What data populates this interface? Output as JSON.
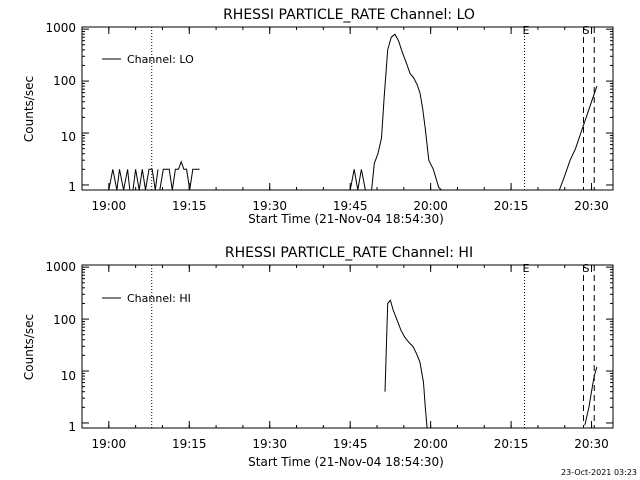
{
  "footer_timestamp": "23-Oct-2021 03:23",
  "chart_data": [
    {
      "type": "line",
      "title": "RHESSI PARTICLE_RATE Channel: LO",
      "xlabel": "Start Time (21-Nov-04 18:54:30)",
      "ylabel": "Counts/sec",
      "y_scale": "log",
      "ylim": [
        0.8,
        1100
      ],
      "xlim": [
        "18:55:00",
        "20:34:00"
      ],
      "x_ticks": [
        "19:00",
        "19:15",
        "19:30",
        "19:45",
        "20:00",
        "20:15",
        "20:30"
      ],
      "y_ticks": [
        "1",
        "10",
        "100",
        "1000"
      ],
      "legend": {
        "label": "Channel: LO",
        "placement": "top-left"
      },
      "markers": [
        {
          "time": "19:08:00",
          "style": "dotted",
          "label": ""
        },
        {
          "time": "20:17:30",
          "style": "dotted",
          "label": "E"
        },
        {
          "time": "20:28:30",
          "style": "dashed",
          "label": "S"
        },
        {
          "time": "20:30:30",
          "style": "dashed",
          "label": ""
        }
      ],
      "series": [
        {
          "name": "Channel: LO",
          "segments": [
            {
              "x": [
                "19:00:00",
                "19:00:45",
                "19:01:30",
                "19:02:00",
                "19:02:45",
                "19:03:30",
                "19:03:55"
              ],
              "y": [
                0.8,
                2,
                0.8,
                2,
                0.8,
                2,
                0.8
              ]
            },
            {
              "x": [
                "19:04:30",
                "19:05:00",
                "19:05:40",
                "19:06:15",
                "19:06:50",
                "19:07:30",
                "19:08:05",
                "19:08:40",
                "19:09:10"
              ],
              "y": [
                0.8,
                2,
                0.8,
                2,
                0.8,
                2,
                2,
                0.8,
                2
              ]
            },
            {
              "x": [
                "19:09:30",
                "19:10:10",
                "19:10:40",
                "19:11:15",
                "19:11:50",
                "19:12:25",
                "19:13:00",
                "19:13:30",
                "19:14:00",
                "19:14:30",
                "19:15:05",
                "19:15:40",
                "19:16:20",
                "19:16:55"
              ],
              "y": [
                0.8,
                2,
                2,
                2,
                0.8,
                2,
                2,
                2.8,
                2,
                2,
                0.8,
                2,
                2,
                2
              ]
            },
            {
              "x": [
                "19:45:00",
                "19:45:45",
                "19:46:25",
                "19:47:05",
                "19:47:50"
              ],
              "y": [
                0.8,
                2,
                0.8,
                2,
                0.8
              ]
            },
            {
              "x": [
                "19:49:00",
                "19:49:30",
                "19:50:10",
                "19:50:50",
                "19:51:20",
                "19:52:00",
                "19:52:40",
                "19:53:20",
                "19:54:00",
                "19:54:45",
                "19:55:30",
                "19:56:10",
                "19:56:50",
                "19:57:30",
                "19:58:00",
                "19:58:30",
                "19:59:00",
                "19:59:40",
                "20:00:30",
                "20:01:30",
                "20:02:00"
              ],
              "y": [
                0.8,
                2.6,
                4,
                8,
                50,
                400,
                700,
                800,
                600,
                350,
                220,
                140,
                115,
                85,
                60,
                30,
                12,
                3,
                2,
                0.9,
                0.8
              ]
            },
            {
              "x": [
                "20:24:00",
                "20:25:00",
                "20:26:00",
                "20:27:00",
                "20:28:00",
                "20:29:00",
                "20:30:00",
                "20:31:00"
              ],
              "y": [
                0.8,
                1.5,
                3,
                5,
                10,
                20,
                40,
                80
              ]
            }
          ]
        }
      ]
    },
    {
      "type": "line",
      "title": "RHESSI PARTICLE_RATE Channel: HI",
      "xlabel": "Start Time (21-Nov-04 18:54:30)",
      "ylabel": "Counts/sec",
      "y_scale": "log",
      "ylim": [
        0.8,
        1100
      ],
      "xlim": [
        "18:55:00",
        "20:34:00"
      ],
      "x_ticks": [
        "19:00",
        "19:15",
        "19:30",
        "19:45",
        "20:00",
        "20:15",
        "20:30"
      ],
      "y_ticks": [
        "1",
        "10",
        "100",
        "1000"
      ],
      "legend": {
        "label": "Channel: HI",
        "placement": "top-left"
      },
      "markers": [
        {
          "time": "19:08:00",
          "style": "dotted",
          "label": ""
        },
        {
          "time": "20:17:30",
          "style": "dotted",
          "label": "E"
        },
        {
          "time": "20:28:30",
          "style": "dashed",
          "label": "S"
        },
        {
          "time": "20:30:30",
          "style": "dashed",
          "label": ""
        }
      ],
      "series": [
        {
          "name": "Channel: HI",
          "segments": [
            {
              "x": [
                "19:51:30",
                "19:52:00",
                "19:52:30",
                "19:53:00",
                "19:53:40",
                "19:54:30",
                "19:55:10",
                "19:56:00",
                "19:56:40",
                "19:57:20",
                "19:58:00",
                "19:58:40",
                "19:59:00",
                "19:59:20"
              ],
              "y": [
                4,
                200,
                230,
                150,
                100,
                60,
                45,
                35,
                30,
                22,
                15,
                6,
                2,
                0.8
              ]
            },
            {
              "x": [
                "20:28:45",
                "20:29:30",
                "20:30:00",
                "20:30:30",
                "20:31:00"
              ],
              "y": [
                0.9,
                2,
                4,
                8,
                12
              ]
            }
          ]
        }
      ]
    }
  ]
}
